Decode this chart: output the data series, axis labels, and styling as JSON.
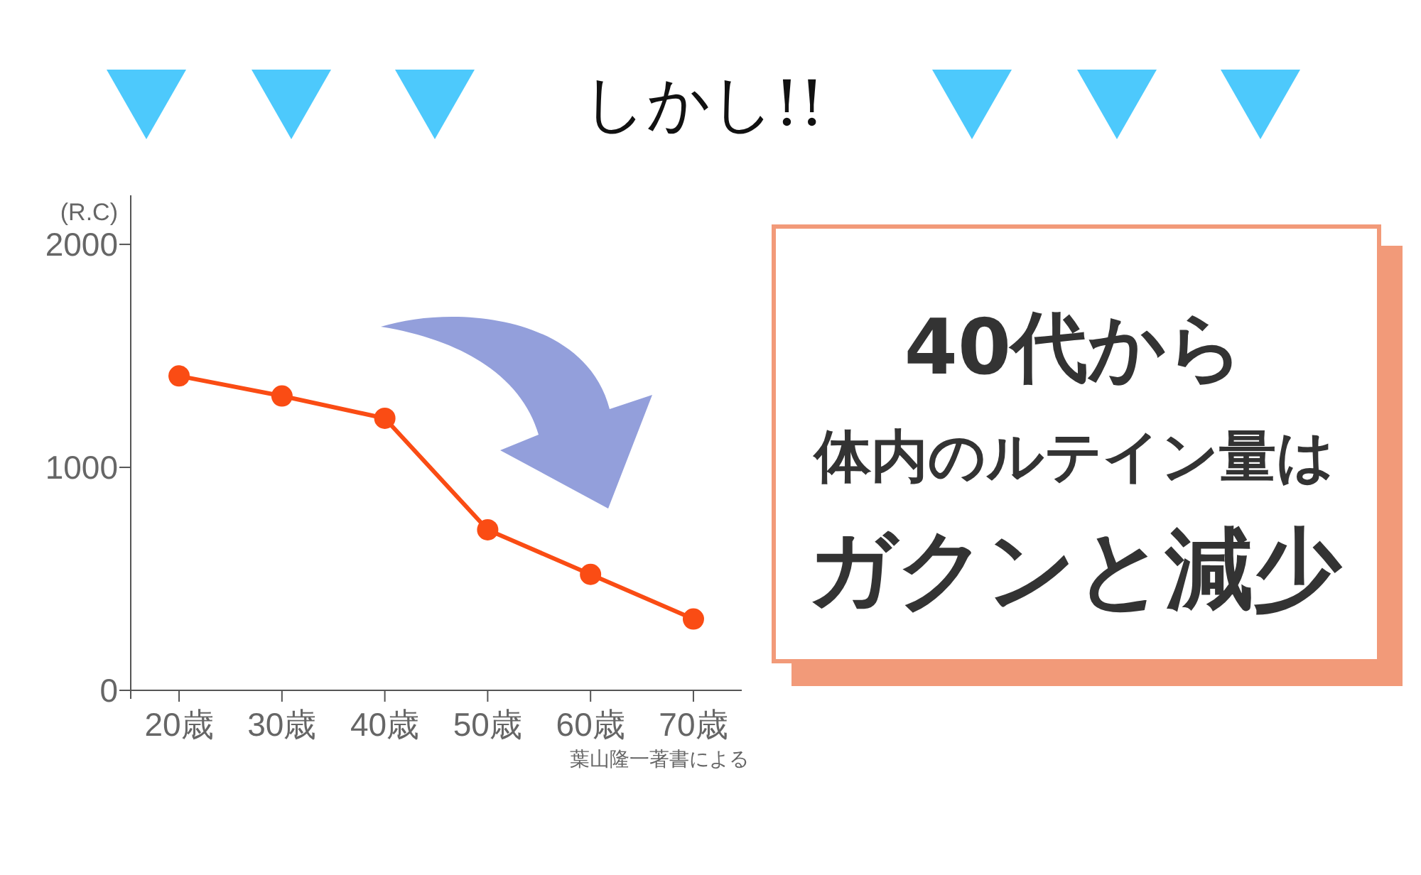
{
  "chart_data": {
    "type": "line",
    "title": "しかし!!",
    "ylabel": "(R.C)",
    "categories": [
      "20歳",
      "30歳",
      "40歳",
      "50歳",
      "60歳",
      "70歳"
    ],
    "series": [
      {
        "color": "#fa4c14",
        "values": [
          1410,
          1320,
          1220,
          720,
          520,
          320
        ]
      }
    ],
    "ylim": [
      0,
      2220
    ],
    "yticks": [
      0,
      1000,
      2000
    ],
    "marker": "circle",
    "line_style": "solid",
    "annotations": [
      "40代から",
      "体内のルテイン量は",
      "ガクンと減少",
      "葉山隆一著書による"
    ]
  }
}
